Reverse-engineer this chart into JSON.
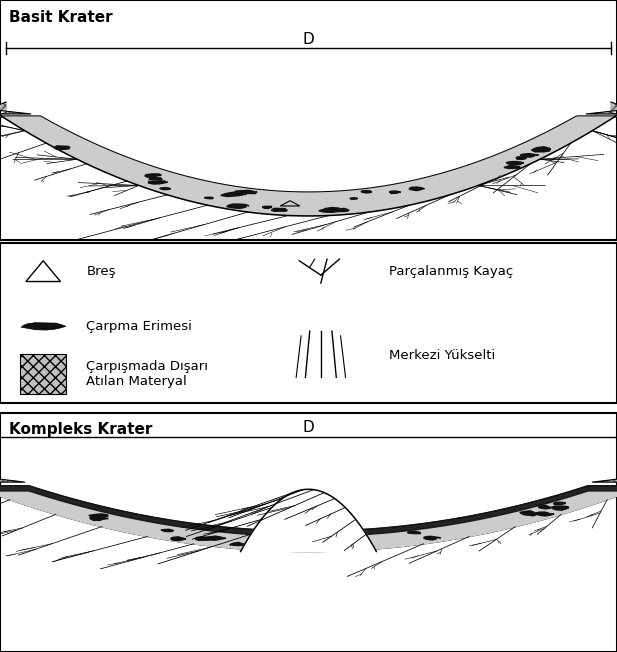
{
  "title_simple": "Basit Krater",
  "title_complex": "Kompleks Krater",
  "label_bres": "Breş",
  "label_carpma": "Çarpma Erimesi",
  "label_carpismada": "Çarpışmada Dışarı\nAtılan Materyal",
  "label_parcalanmis": "Parçalanmış Kayaç",
  "label_merkezi": "Merkezi Yükselti",
  "D_label": "D",
  "bg_color": "#ffffff",
  "border_color": "#000000",
  "text_color": "#000000",
  "ejecta_color": "#b8b8b8",
  "melt_color": "#111111",
  "fill_color": "#d0d0d0"
}
